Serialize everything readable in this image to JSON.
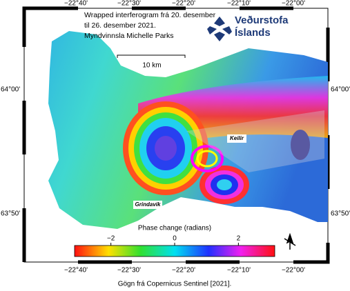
{
  "title_lines": [
    "Wrapped interferogram frá 20. desember",
    "til 26. desember 2021.",
    "Myndvinnsla Michelle Parks"
  ],
  "logo": {
    "line1": "Veðurstofa",
    "line2": "Íslands"
  },
  "scale_bar": "10 km",
  "places": [
    "Keilir",
    "Grindavík"
  ],
  "longitude_labels": [
    "−22°40'",
    "−22°30'",
    "−22°20'",
    "−22°10'",
    "−22°00'"
  ],
  "latitude_labels": [
    "64°00'",
    "63°50'"
  ],
  "colorbar": {
    "title": "Phase change (radians)",
    "lim": [
      -3.14,
      3.14
    ],
    "ticks": [
      {
        "value": -2,
        "label": "−2"
      },
      0,
      2
    ]
  },
  "caption": "Gögn frá Copernicus Sentinel [2021]."
}
